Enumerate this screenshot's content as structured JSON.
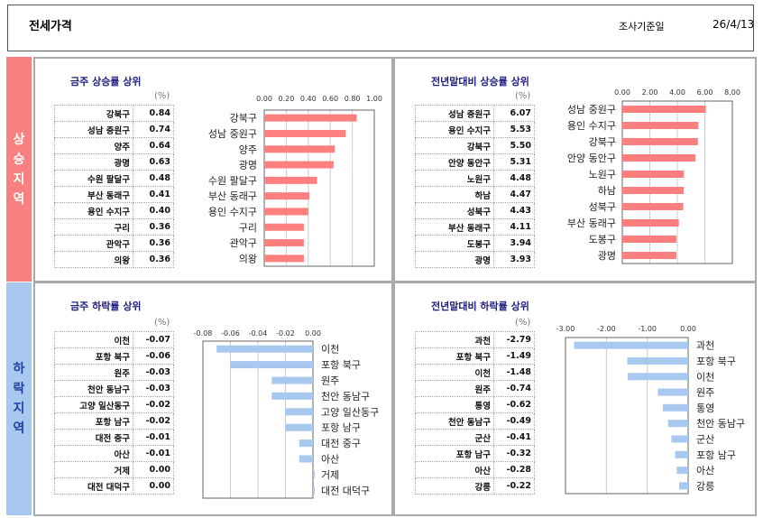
{
  "header": {
    "title": "전세가격",
    "date_label": "조사기준일",
    "date": "26/4/13"
  },
  "bands": {
    "up": [
      "상",
      "승",
      "지",
      "역"
    ],
    "down": [
      "하",
      "락",
      "지",
      "역"
    ]
  },
  "unit": "(%)",
  "chart_data": [
    {
      "id": "tl",
      "type": "bar",
      "title": "금주 상승률 상위",
      "color": "#ff7f7f",
      "xlim": [
        0,
        1
      ],
      "ticks": [
        "0.00",
        "0.20",
        "0.40",
        "0.60",
        "0.80",
        "1.00"
      ],
      "categories": [
        "강북구",
        "성남 중원구",
        "양주",
        "광명",
        "수원 팔달구",
        "부산 동래구",
        "용인 수지구",
        "구리",
        "관악구",
        "의왕"
      ],
      "values": [
        0.84,
        0.74,
        0.64,
        0.63,
        0.48,
        0.41,
        0.4,
        0.36,
        0.36,
        0.36
      ],
      "value_labels": [
        "0.84",
        "0.74",
        "0.64",
        "0.63",
        "0.48",
        "0.41",
        "0.40",
        "0.36",
        "0.36",
        "0.36"
      ]
    },
    {
      "id": "tr",
      "type": "bar",
      "title": "전년말대비 상승률 상위",
      "color": "#ff7f7f",
      "xlim": [
        0,
        8
      ],
      "ticks": [
        "0.00",
        "2.00",
        "4.00",
        "6.00",
        "8.00"
      ],
      "categories": [
        "성남 중원구",
        "용인 수지구",
        "강북구",
        "안양 동안구",
        "노원구",
        "하남",
        "성북구",
        "부산 동래구",
        "도봉구",
        "광명"
      ],
      "values": [
        6.07,
        5.53,
        5.5,
        5.31,
        4.48,
        4.47,
        4.43,
        4.11,
        3.94,
        3.93
      ],
      "value_labels": [
        "6.07",
        "5.53",
        "5.50",
        "5.31",
        "4.48",
        "4.47",
        "4.43",
        "4.11",
        "3.94",
        "3.93"
      ]
    },
    {
      "id": "bl",
      "type": "bar",
      "title": "금주 하락률 상위",
      "color": "#a8c8f0",
      "xlim": [
        -0.08,
        0
      ],
      "ticks": [
        "-0.08",
        "-0.06",
        "-0.04",
        "-0.02",
        "0.00"
      ],
      "categories": [
        "이천",
        "포항 북구",
        "원주",
        "천안 동남구",
        "고양 일산동구",
        "포항 남구",
        "대전 중구",
        "아산",
        "거제",
        "대전 대덕구"
      ],
      "values": [
        -0.07,
        -0.06,
        -0.03,
        -0.03,
        -0.02,
        -0.02,
        -0.01,
        -0.01,
        0.0,
        0.0
      ],
      "value_labels": [
        "-0.07",
        "-0.06",
        "-0.03",
        "-0.03",
        "-0.02",
        "-0.02",
        "-0.01",
        "-0.01",
        "0.00",
        "0.00"
      ]
    },
    {
      "id": "br",
      "type": "bar",
      "title": "전년말대비 하락률 상위",
      "color": "#a8c8f0",
      "xlim": [
        -3,
        0
      ],
      "ticks": [
        "-3.00",
        "-2.00",
        "-1.00",
        "0.00"
      ],
      "categories": [
        "과천",
        "포항 북구",
        "이천",
        "원주",
        "통영",
        "천안 동남구",
        "군산",
        "포항 남구",
        "아산",
        "강릉"
      ],
      "values": [
        -2.79,
        -1.49,
        -1.48,
        -0.74,
        -0.62,
        -0.49,
        -0.41,
        -0.32,
        -0.28,
        -0.22
      ],
      "value_labels": [
        "-2.79",
        "-1.49",
        "-1.48",
        "-0.74",
        "-0.62",
        "-0.49",
        "-0.41",
        "-0.32",
        "-0.28",
        "-0.22"
      ]
    }
  ]
}
